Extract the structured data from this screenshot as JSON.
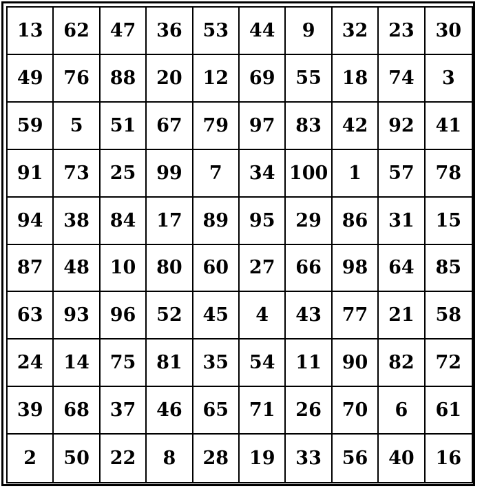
{
  "grid": {
    "rows": [
      [
        13,
        62,
        47,
        36,
        53,
        44,
        9,
        32,
        23,
        30
      ],
      [
        49,
        76,
        88,
        20,
        12,
        69,
        55,
        18,
        74,
        3
      ],
      [
        59,
        5,
        51,
        67,
        79,
        97,
        83,
        42,
        92,
        41
      ],
      [
        91,
        73,
        25,
        99,
        7,
        34,
        100,
        1,
        57,
        78
      ],
      [
        94,
        38,
        84,
        17,
        89,
        95,
        29,
        86,
        31,
        15
      ],
      [
        87,
        48,
        10,
        80,
        60,
        27,
        66,
        98,
        64,
        85
      ],
      [
        63,
        93,
        96,
        52,
        45,
        4,
        43,
        77,
        21,
        58
      ],
      [
        24,
        14,
        75,
        81,
        35,
        54,
        11,
        90,
        82,
        72
      ],
      [
        39,
        68,
        37,
        46,
        65,
        71,
        26,
        70,
        6,
        61
      ],
      [
        2,
        50,
        22,
        8,
        28,
        19,
        33,
        56,
        40,
        16
      ]
    ]
  }
}
